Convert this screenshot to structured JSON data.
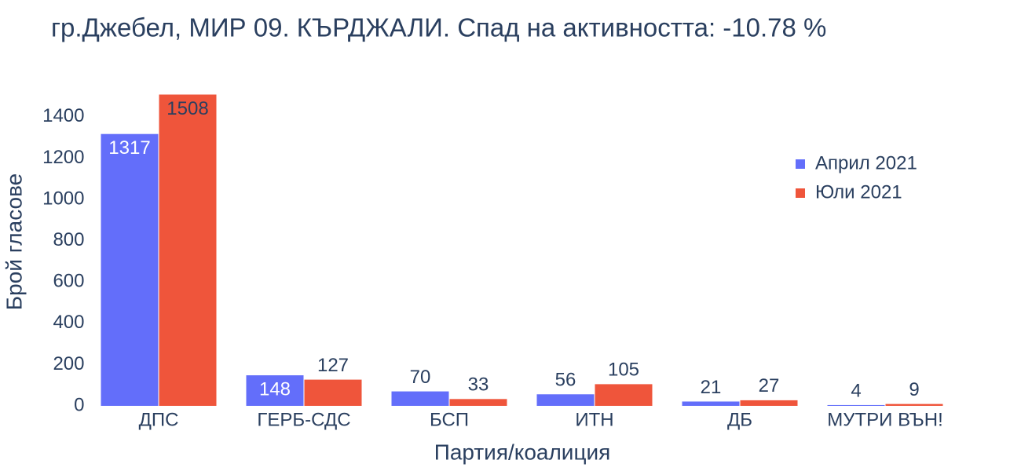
{
  "chart_data": {
    "type": "bar",
    "title": "гр.Джебел, МИР 09. КЪРДЖАЛИ. Спад на активността: -10.78 %",
    "x_label": "Партия/коалиция",
    "y_label": "Брой гласове",
    "categories": [
      "ДПС",
      "ГЕРБ-СДС",
      "БСП",
      "ИТН",
      "ДБ",
      "МУТРИ ВЪН!"
    ],
    "series": [
      {
        "name": "Април 2021",
        "color": "#636efa",
        "values": [
          1317,
          148,
          70,
          56,
          21,
          4
        ]
      },
      {
        "name": "Юли 2021",
        "color": "#ef553b",
        "values": [
          1508,
          127,
          33,
          105,
          27,
          9
        ]
      }
    ],
    "ylim": [
      0,
      1587
    ],
    "yticks": [
      0,
      200,
      400,
      600,
      800,
      1000,
      1200,
      1400
    ],
    "legend": "top-right"
  }
}
